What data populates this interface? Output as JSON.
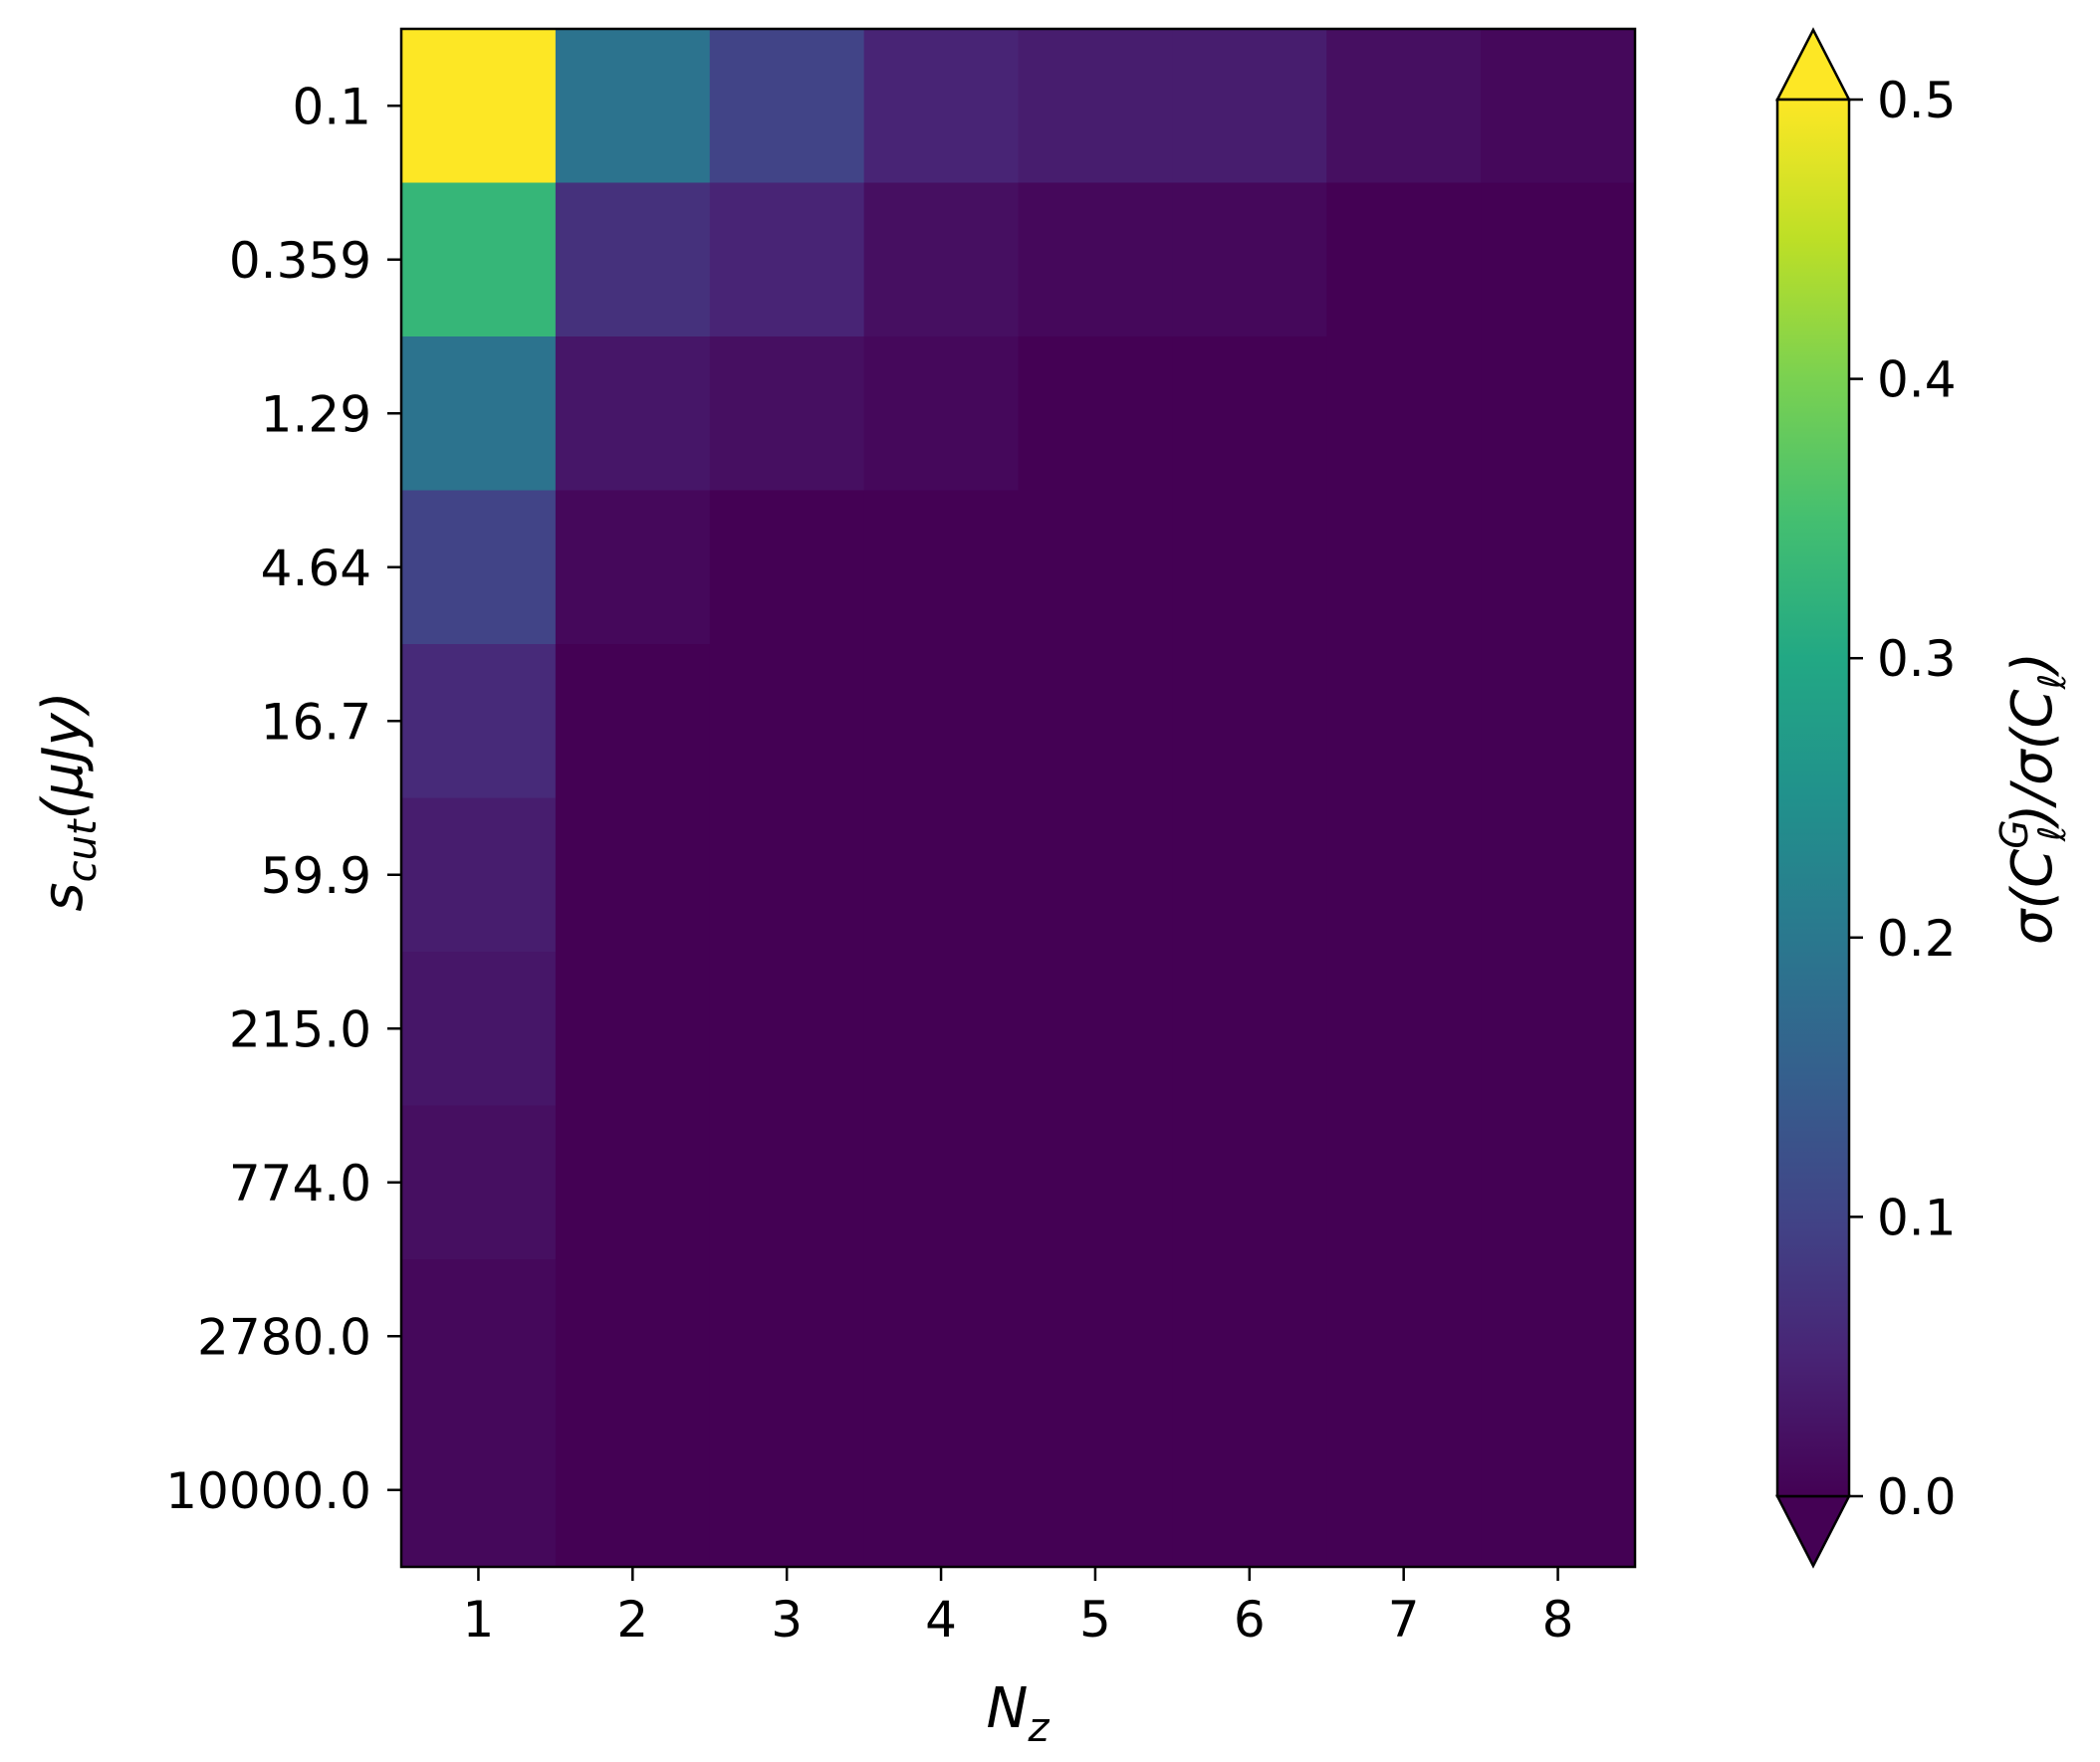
{
  "chart_data": {
    "type": "heatmap",
    "title": "",
    "x": [
      1,
      2,
      3,
      4,
      5,
      6,
      7,
      8
    ],
    "x_tick_labels": [
      "1",
      "2",
      "3",
      "4",
      "5",
      "6",
      "7",
      "8"
    ],
    "y_tick_labels": [
      "0.1",
      "0.359",
      "1.29",
      "4.64",
      "16.7",
      "59.9",
      "215.0",
      "774.0",
      "2780.0",
      "10000.0"
    ],
    "xlabel": {
      "main": "N",
      "sub": "z"
    },
    "ylabel": {
      "main": "s",
      "sub": "cut",
      "rest": "(μJy)"
    },
    "values": [
      [
        0.52,
        0.19,
        0.1,
        0.05,
        0.04,
        0.04,
        0.02,
        0.01
      ],
      [
        0.33,
        0.07,
        0.05,
        0.02,
        0.01,
        0.01,
        0.0,
        0.0
      ],
      [
        0.19,
        0.03,
        0.02,
        0.01,
        0.0,
        0.0,
        0.0,
        0.0
      ],
      [
        0.1,
        0.01,
        0.0,
        0.0,
        0.0,
        0.0,
        0.0,
        0.0
      ],
      [
        0.06,
        0.0,
        0.0,
        0.0,
        0.0,
        0.0,
        0.0,
        0.0
      ],
      [
        0.04,
        0.0,
        0.0,
        0.0,
        0.0,
        0.0,
        0.0,
        0.0
      ],
      [
        0.03,
        0.0,
        0.0,
        0.0,
        0.0,
        0.0,
        0.0,
        0.0
      ],
      [
        0.02,
        0.0,
        0.0,
        0.0,
        0.0,
        0.0,
        0.0,
        0.0
      ],
      [
        0.01,
        0.0,
        0.0,
        0.0,
        0.0,
        0.0,
        0.0,
        0.0
      ],
      [
        0.01,
        0.0,
        0.0,
        0.0,
        0.0,
        0.0,
        0.0,
        0.0
      ]
    ],
    "colormap": "viridis",
    "colorbar": {
      "vmin": 0.0,
      "vmax": 0.5,
      "extend": "both",
      "ticks": [
        0.0,
        0.1,
        0.2,
        0.3,
        0.4,
        0.5
      ],
      "tick_labels": [
        "0.0",
        "0.1",
        "0.2",
        "0.3",
        "0.4",
        "0.5"
      ],
      "label": "σ(C_ℓ^G)/σ(C_ℓ)"
    },
    "grid": false
  }
}
